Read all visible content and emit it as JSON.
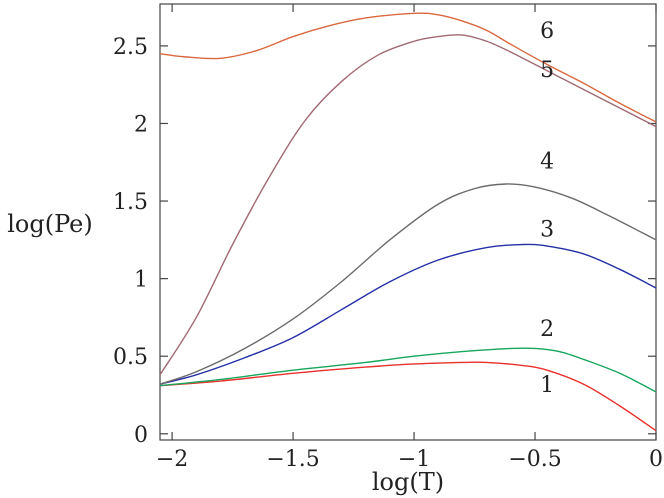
{
  "chart_data": {
    "type": "line",
    "title": "",
    "xlabel": "log(T)",
    "ylabel": "log(Pe)",
    "xlim": [
      -2.05,
      0
    ],
    "ylim": [
      -0.04,
      2.77
    ],
    "grid": false,
    "legend": "none",
    "x_ticks": [
      {
        "value": -2,
        "label": "−2"
      },
      {
        "value": -1.5,
        "label": "−1.5"
      },
      {
        "value": -1,
        "label": "−1"
      },
      {
        "value": -0.5,
        "label": "−0.5"
      },
      {
        "value": 0,
        "label": "0"
      }
    ],
    "y_ticks": [
      {
        "value": 0,
        "label": "0"
      },
      {
        "value": 0.5,
        "label": "0.5"
      },
      {
        "value": 1,
        "label": "1"
      },
      {
        "value": 1.5,
        "label": "1.5"
      },
      {
        "value": 2,
        "label": "2"
      },
      {
        "value": 2.5,
        "label": "2.5"
      }
    ],
    "series": [
      {
        "name": "1",
        "color": "#e8302c",
        "label_at": [
          -0.45,
          0.27
        ],
        "points": [
          [
            -2.05,
            0.31
          ],
          [
            -1.8,
            0.34
          ],
          [
            -1.5,
            0.39
          ],
          [
            -1.2,
            0.43
          ],
          [
            -1.0,
            0.45
          ],
          [
            -0.8,
            0.46
          ],
          [
            -0.7,
            0.46
          ],
          [
            -0.55,
            0.44
          ],
          [
            -0.45,
            0.41
          ],
          [
            -0.3,
            0.32
          ],
          [
            -0.15,
            0.18
          ],
          [
            0,
            0.02
          ]
        ]
      },
      {
        "name": "2",
        "color": "#17a65c",
        "label_at": [
          -0.45,
          0.63
        ],
        "points": [
          [
            -2.05,
            0.31
          ],
          [
            -1.8,
            0.35
          ],
          [
            -1.5,
            0.41
          ],
          [
            -1.2,
            0.46
          ],
          [
            -1.0,
            0.5
          ],
          [
            -0.8,
            0.53
          ],
          [
            -0.6,
            0.55
          ],
          [
            -0.5,
            0.55
          ],
          [
            -0.4,
            0.53
          ],
          [
            -0.3,
            0.48
          ],
          [
            -0.15,
            0.39
          ],
          [
            0,
            0.27
          ]
        ]
      },
      {
        "name": "3",
        "color": "#2430a6",
        "label_at": [
          -0.45,
          1.27
        ],
        "points": [
          [
            -2.05,
            0.32
          ],
          [
            -1.9,
            0.38
          ],
          [
            -1.7,
            0.49
          ],
          [
            -1.5,
            0.62
          ],
          [
            -1.3,
            0.8
          ],
          [
            -1.1,
            0.98
          ],
          [
            -0.9,
            1.12
          ],
          [
            -0.7,
            1.2
          ],
          [
            -0.55,
            1.22
          ],
          [
            -0.45,
            1.21
          ],
          [
            -0.3,
            1.16
          ],
          [
            -0.15,
            1.06
          ],
          [
            0,
            0.94
          ]
        ]
      },
      {
        "name": "4",
        "color": "#6b6b6b",
        "label_at": [
          -0.45,
          1.71
        ],
        "points": [
          [
            -2.05,
            0.32
          ],
          [
            -1.9,
            0.4
          ],
          [
            -1.7,
            0.55
          ],
          [
            -1.5,
            0.74
          ],
          [
            -1.3,
            0.98
          ],
          [
            -1.1,
            1.25
          ],
          [
            -0.9,
            1.48
          ],
          [
            -0.75,
            1.58
          ],
          [
            -0.62,
            1.61
          ],
          [
            -0.5,
            1.59
          ],
          [
            -0.35,
            1.52
          ],
          [
            -0.2,
            1.41
          ],
          [
            0,
            1.25
          ]
        ]
      },
      {
        "name": "5",
        "color": "#a06a72",
        "label_at": [
          -0.45,
          2.3
        ],
        "points": [
          [
            -2.05,
            0.38
          ],
          [
            -1.9,
            0.75
          ],
          [
            -1.75,
            1.22
          ],
          [
            -1.6,
            1.65
          ],
          [
            -1.45,
            2.02
          ],
          [
            -1.3,
            2.27
          ],
          [
            -1.15,
            2.44
          ],
          [
            -1.0,
            2.53
          ],
          [
            -0.9,
            2.56
          ],
          [
            -0.8,
            2.57
          ],
          [
            -0.7,
            2.53
          ],
          [
            -0.6,
            2.46
          ],
          [
            -0.45,
            2.34
          ],
          [
            -0.3,
            2.22
          ],
          [
            -0.15,
            2.1
          ],
          [
            0,
            1.98
          ]
        ]
      },
      {
        "name": "6",
        "color": "#d9683e",
        "label_at": [
          -0.45,
          2.55
        ],
        "points": [
          [
            -2.05,
            2.45
          ],
          [
            -1.95,
            2.43
          ],
          [
            -1.8,
            2.42
          ],
          [
            -1.65,
            2.47
          ],
          [
            -1.5,
            2.56
          ],
          [
            -1.35,
            2.63
          ],
          [
            -1.2,
            2.68
          ],
          [
            -1.0,
            2.71
          ],
          [
            -0.9,
            2.7
          ],
          [
            -0.8,
            2.66
          ],
          [
            -0.7,
            2.6
          ],
          [
            -0.6,
            2.51
          ],
          [
            -0.45,
            2.38
          ],
          [
            -0.3,
            2.26
          ],
          [
            -0.15,
            2.13
          ],
          [
            0,
            2.01
          ]
        ]
      }
    ]
  }
}
